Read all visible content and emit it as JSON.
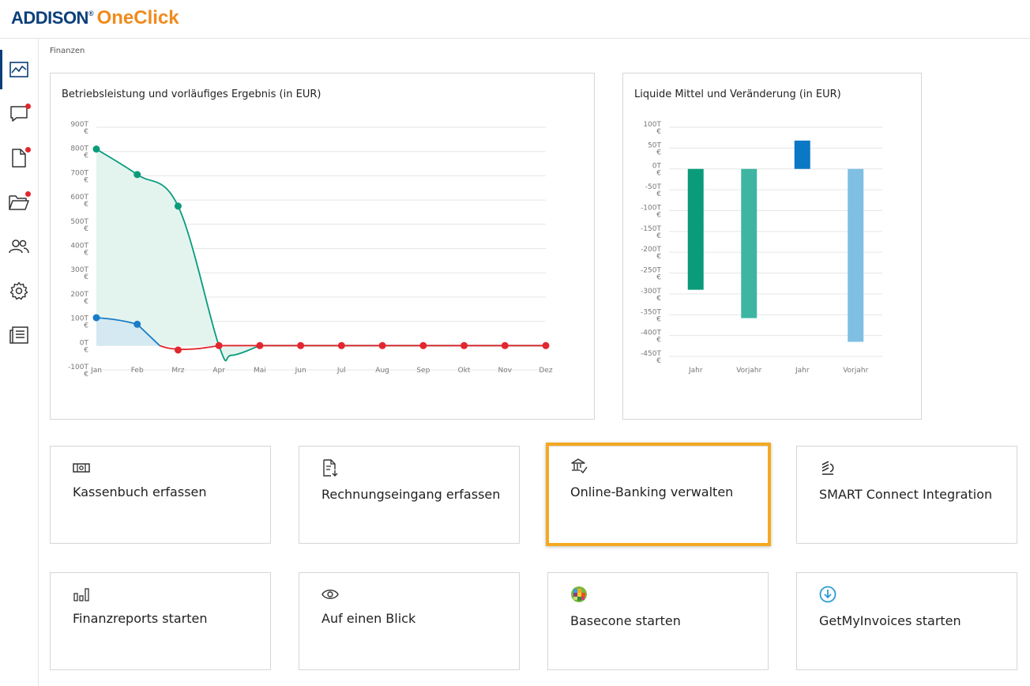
{
  "app": {
    "brand": "ADDISON",
    "reg": "®",
    "product": "OneClick"
  },
  "sidebar": {
    "items": [
      {
        "name": "finance-chart-icon",
        "active": true,
        "badge": false
      },
      {
        "name": "chat-icon",
        "active": false,
        "badge": true
      },
      {
        "name": "document-icon",
        "active": false,
        "badge": true
      },
      {
        "name": "folder-icon",
        "active": false,
        "badge": true
      },
      {
        "name": "users-icon",
        "active": false,
        "badge": false
      },
      {
        "name": "gear-icon",
        "active": false,
        "badge": false
      },
      {
        "name": "newspaper-icon",
        "active": false,
        "badge": false
      }
    ]
  },
  "breadcrumb": "Finanzen",
  "panels": {
    "left_title": "Betriebsleistung und vorläufiges Ergebnis (in EUR)",
    "right_title": "Liquide Mittel und Veränderung (in EUR)"
  },
  "chart_data": [
    {
      "type": "line",
      "title": "Betriebsleistung und vorläufiges Ergebnis (in EUR)",
      "categories": [
        "Jan",
        "Feb",
        "Mrz",
        "Apr",
        "Mai",
        "Jun",
        "Jul",
        "Aug",
        "Sep",
        "Okt",
        "Nov",
        "Dez"
      ],
      "y_ticks": [
        "900T €",
        "800T €",
        "700T €",
        "600T €",
        "500T €",
        "400T €",
        "300T €",
        "200T €",
        "100T €",
        "0T €",
        "-100T €"
      ],
      "ylim": [
        -100000,
        900000
      ],
      "series": [
        {
          "values": [
            810000,
            705000,
            575000,
            0,
            0,
            0,
            0,
            0,
            0,
            0,
            0,
            0
          ],
          "color": "#0a9b7b",
          "fill": "#e3f4ef",
          "dip_between_apr_mai": -40000
        },
        {
          "values": [
            115000,
            88000,
            -18000,
            0,
            0,
            0,
            0,
            0,
            0,
            0,
            0,
            0
          ],
          "color_positive": "#1a7bc6",
          "color_negative": "#e3262f",
          "fill": "#d4e9f1"
        }
      ],
      "grid": true
    },
    {
      "type": "bar",
      "title": "Liquide Mittel und Veränderung (in EUR)",
      "categories": [
        "Jahr",
        "Vorjahr",
        "Jahr",
        "Vorjahr"
      ],
      "values": [
        -290000,
        -358000,
        68000,
        -415000
      ],
      "colors": [
        "#0a9b7b",
        "#3eb5a3",
        "#0a78c4",
        "#7fbfe3"
      ],
      "y_ticks": [
        "100T €",
        "50T €",
        "0T €",
        "-50T €",
        "-100T €",
        "-150T €",
        "-200T €",
        "-250T €",
        "-300T €",
        "-350T €",
        "-400T €",
        "-450T €"
      ],
      "ylim": [
        -450000,
        100000
      ],
      "grid": true
    }
  ],
  "tiles": [
    {
      "label": "Kassenbuch erfassen",
      "icon": "cash-register-icon"
    },
    {
      "label": "Rechnungseingang erfassen",
      "icon": "invoice-icon"
    },
    {
      "label": "Online-Banking verwalten",
      "icon": "bank-icon",
      "highlighted": true
    },
    {
      "label": "SMART Connect Integration",
      "icon": "smart-connect-icon"
    },
    {
      "label": "Finanzreports starten",
      "icon": "bar-chart-icon"
    },
    {
      "label": "Auf einen Blick",
      "icon": "eye-icon"
    },
    {
      "label": "Basecone starten",
      "icon": "basecone-logo-icon"
    },
    {
      "label": "GetMyInvoices starten",
      "icon": "download-circle-icon"
    }
  ]
}
